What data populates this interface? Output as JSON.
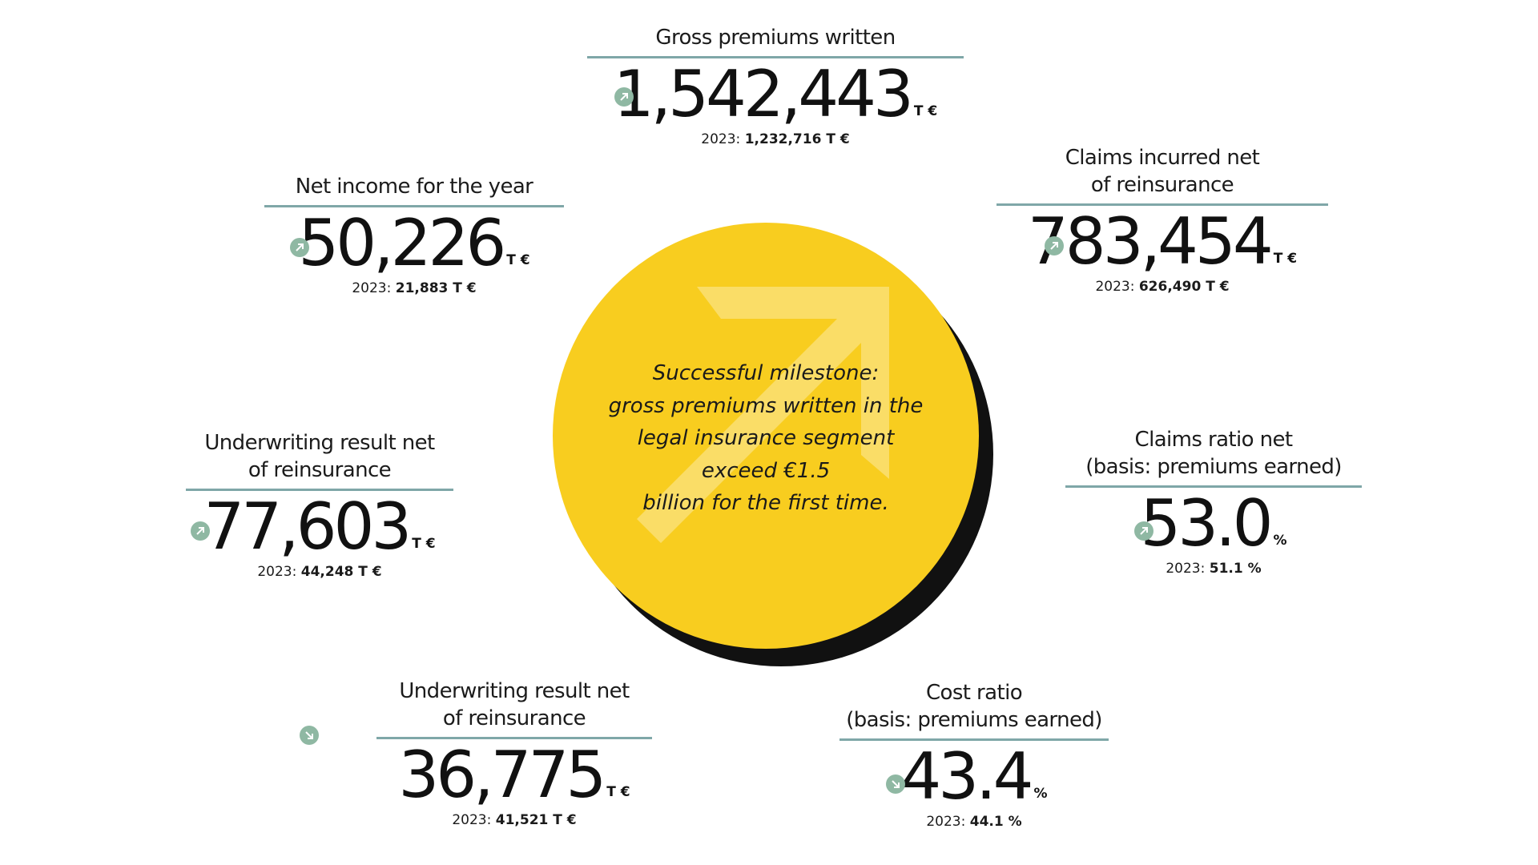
{
  "milestone": {
    "lines": [
      "Successful milestone:",
      "gross premiums written in the",
      "legal insurance segment",
      "exceed €1.5",
      "billion for the first time."
    ],
    "disc_color": "#f8cd1f",
    "arrow_icon": "arrow-up-right-icon"
  },
  "kpis": {
    "gross_premiums": {
      "label_lines": [
        "Gross premiums written"
      ],
      "value": "1,542,443",
      "unit": "T €",
      "trend": "up",
      "prev_year": "2023:",
      "prev_value": "1,232,716 T €"
    },
    "net_income": {
      "label_lines": [
        "Net income for the year"
      ],
      "value": "50,226",
      "unit": "T €",
      "trend": "up",
      "prev_year": "2023:",
      "prev_value": "21,883 T €"
    },
    "claims_incurred": {
      "label_lines": [
        "Claims incurred net",
        "of reinsurance"
      ],
      "value": "783,454",
      "unit": "T €",
      "trend": "up",
      "prev_year": "2023:",
      "prev_value": "626,490 T €"
    },
    "underwriting_left": {
      "label_lines": [
        "Underwriting result net",
        "of reinsurance"
      ],
      "value": "77,603",
      "unit": "T €",
      "trend": "up",
      "prev_year": "2023:",
      "prev_value": "44,248 T €"
    },
    "claims_ratio": {
      "label_lines": [
        "Claims ratio net",
        "(basis: premiums earned)"
      ],
      "value": "53.0",
      "unit": "%",
      "trend": "up",
      "prev_year": "2023:",
      "prev_value": "51.1 %"
    },
    "underwriting_bottom": {
      "label_lines": [
        "Underwriting result net",
        "of reinsurance"
      ],
      "value": "36,775",
      "unit": "T €",
      "trend": "down",
      "prev_year": "2023:",
      "prev_value": "41,521 T €"
    },
    "cost_ratio": {
      "label_lines": [
        "Cost ratio",
        "(basis: premiums earned)"
      ],
      "value": "43.4",
      "unit": "%",
      "trend": "down",
      "prev_year": "2023:",
      "prev_value": "44.1 %"
    }
  },
  "colors": {
    "rule": "#7fa7a8",
    "trend_icon": "#8fb8a3",
    "shadow": "#111111"
  }
}
